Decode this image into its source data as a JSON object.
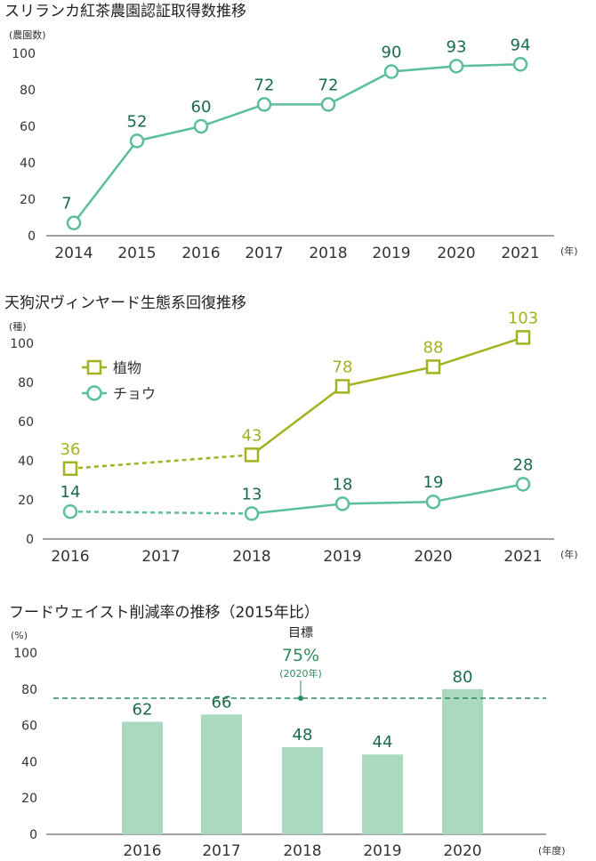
{
  "charts": [
    {
      "type": "line",
      "title": "スリランカ紅茶農園認証取得数推移",
      "y_unit": "(農園数)",
      "x_unit": "(年)",
      "categories": [
        "2014",
        "2015",
        "2016",
        "2017",
        "2018",
        "2019",
        "2020",
        "2021"
      ],
      "yticks": [
        "0",
        "20",
        "40",
        "60",
        "80",
        "100"
      ],
      "ylim": [
        0,
        100
      ],
      "series": [
        {
          "values": [
            7,
            52,
            60,
            72,
            72,
            90,
            93,
            94
          ],
          "color": "#5bbf98",
          "label_color": "#1a6b4a",
          "marker": "circle"
        }
      ]
    },
    {
      "type": "line",
      "title": "天狗沢ヴィンヤード生態系回復推移",
      "y_unit": "(種)",
      "x_unit": "(年)",
      "categories": [
        "2016",
        "2017",
        "2018",
        "2019",
        "2020",
        "2021"
      ],
      "yticks": [
        "0",
        "20",
        "40",
        "60",
        "80",
        "100"
      ],
      "ylim": [
        0,
        100
      ],
      "legend_position": "top-left",
      "series": [
        {
          "name": "植物",
          "x": [
            "2016",
            "2018",
            "2019",
            "2020",
            "2021"
          ],
          "values": [
            36,
            43,
            78,
            88,
            103
          ],
          "color": "#a3b21f",
          "label_color": "#a3b21f",
          "marker": "square",
          "dashed_segments": [
            0
          ]
        },
        {
          "name": "チョウ",
          "x": [
            "2016",
            "2018",
            "2019",
            "2020",
            "2021"
          ],
          "values": [
            14,
            13,
            18,
            19,
            28
          ],
          "color": "#5bbf98",
          "label_color": "#1a6b4a",
          "marker": "circle",
          "dashed_segments": [
            0
          ]
        }
      ]
    },
    {
      "type": "bar",
      "title": "フードウェイスト削減率の推移（2015年比）",
      "y_unit": "(%)",
      "x_unit": "(年度)",
      "categories": [
        "2016",
        "2017",
        "2018",
        "2019",
        "2020"
      ],
      "yticks": [
        "0",
        "20",
        "40",
        "60",
        "80",
        "100"
      ],
      "ylim": [
        0,
        100
      ],
      "values": [
        62,
        66,
        48,
        44,
        80
      ],
      "bar_color": "#a9d9bf",
      "label_color": "#1a6b4a",
      "target": {
        "label": "目標",
        "value_text": "75%",
        "sub": "(2020年)",
        "value": 75,
        "color": "#2e8b5e"
      }
    }
  ]
}
